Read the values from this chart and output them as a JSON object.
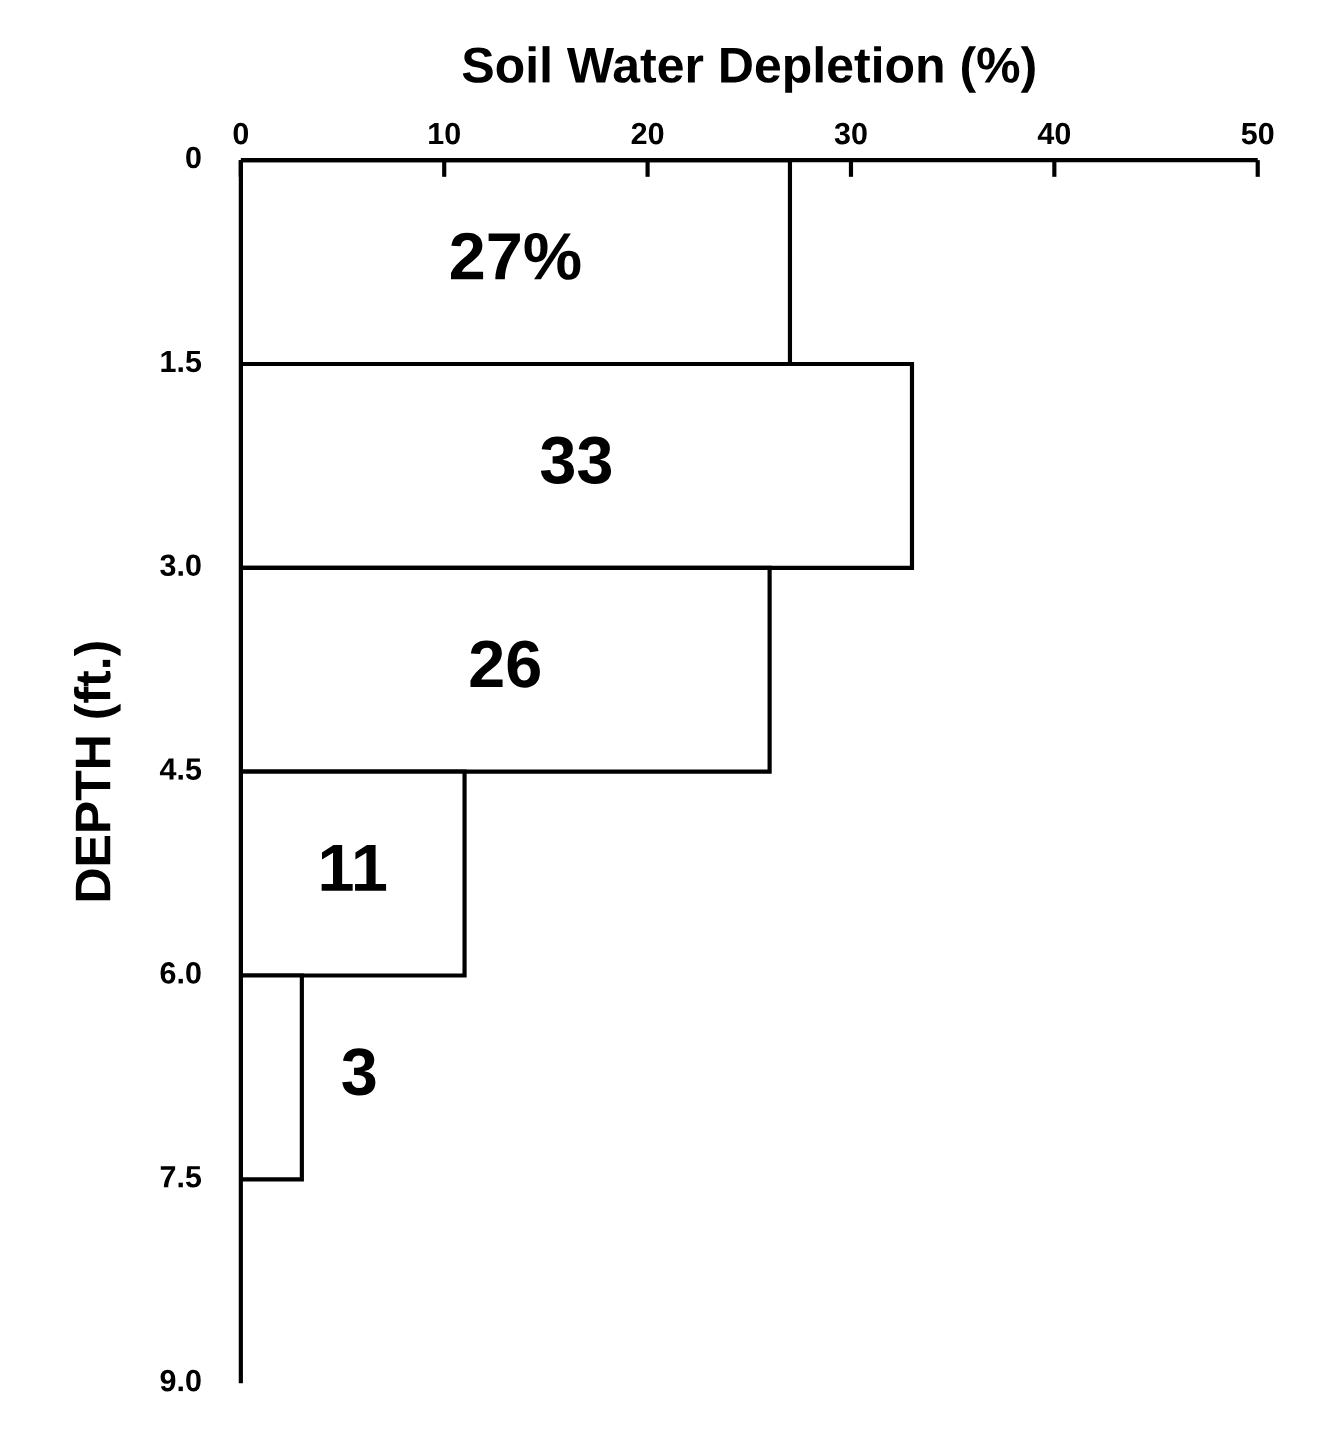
{
  "chart_data": {
    "type": "bar",
    "orientation": "horizontal",
    "title": "Soil Water Depletion (%)",
    "ylabel": "DEPTH (ft.)",
    "x": [
      0.75,
      2.25,
      3.75,
      5.25,
      6.75
    ],
    "values": [
      27,
      33,
      26,
      11,
      3
    ],
    "value_labels": [
      "27%",
      "33",
      "26",
      "11",
      "3"
    ],
    "color": "#ffffff",
    "xlim": [
      0,
      50
    ],
    "xticks": [
      0,
      10,
      20,
      30,
      40,
      50
    ],
    "ylim": [
      9,
      0
    ],
    "yticks": [
      0,
      1.5,
      {
        "value": 3,
        "label": "3.0"
      },
      4.5,
      {
        "value": 6,
        "label": "6.0"
      },
      7.5,
      {
        "value": 9,
        "label": "9.0"
      }
    ],
    "grid": false
  }
}
